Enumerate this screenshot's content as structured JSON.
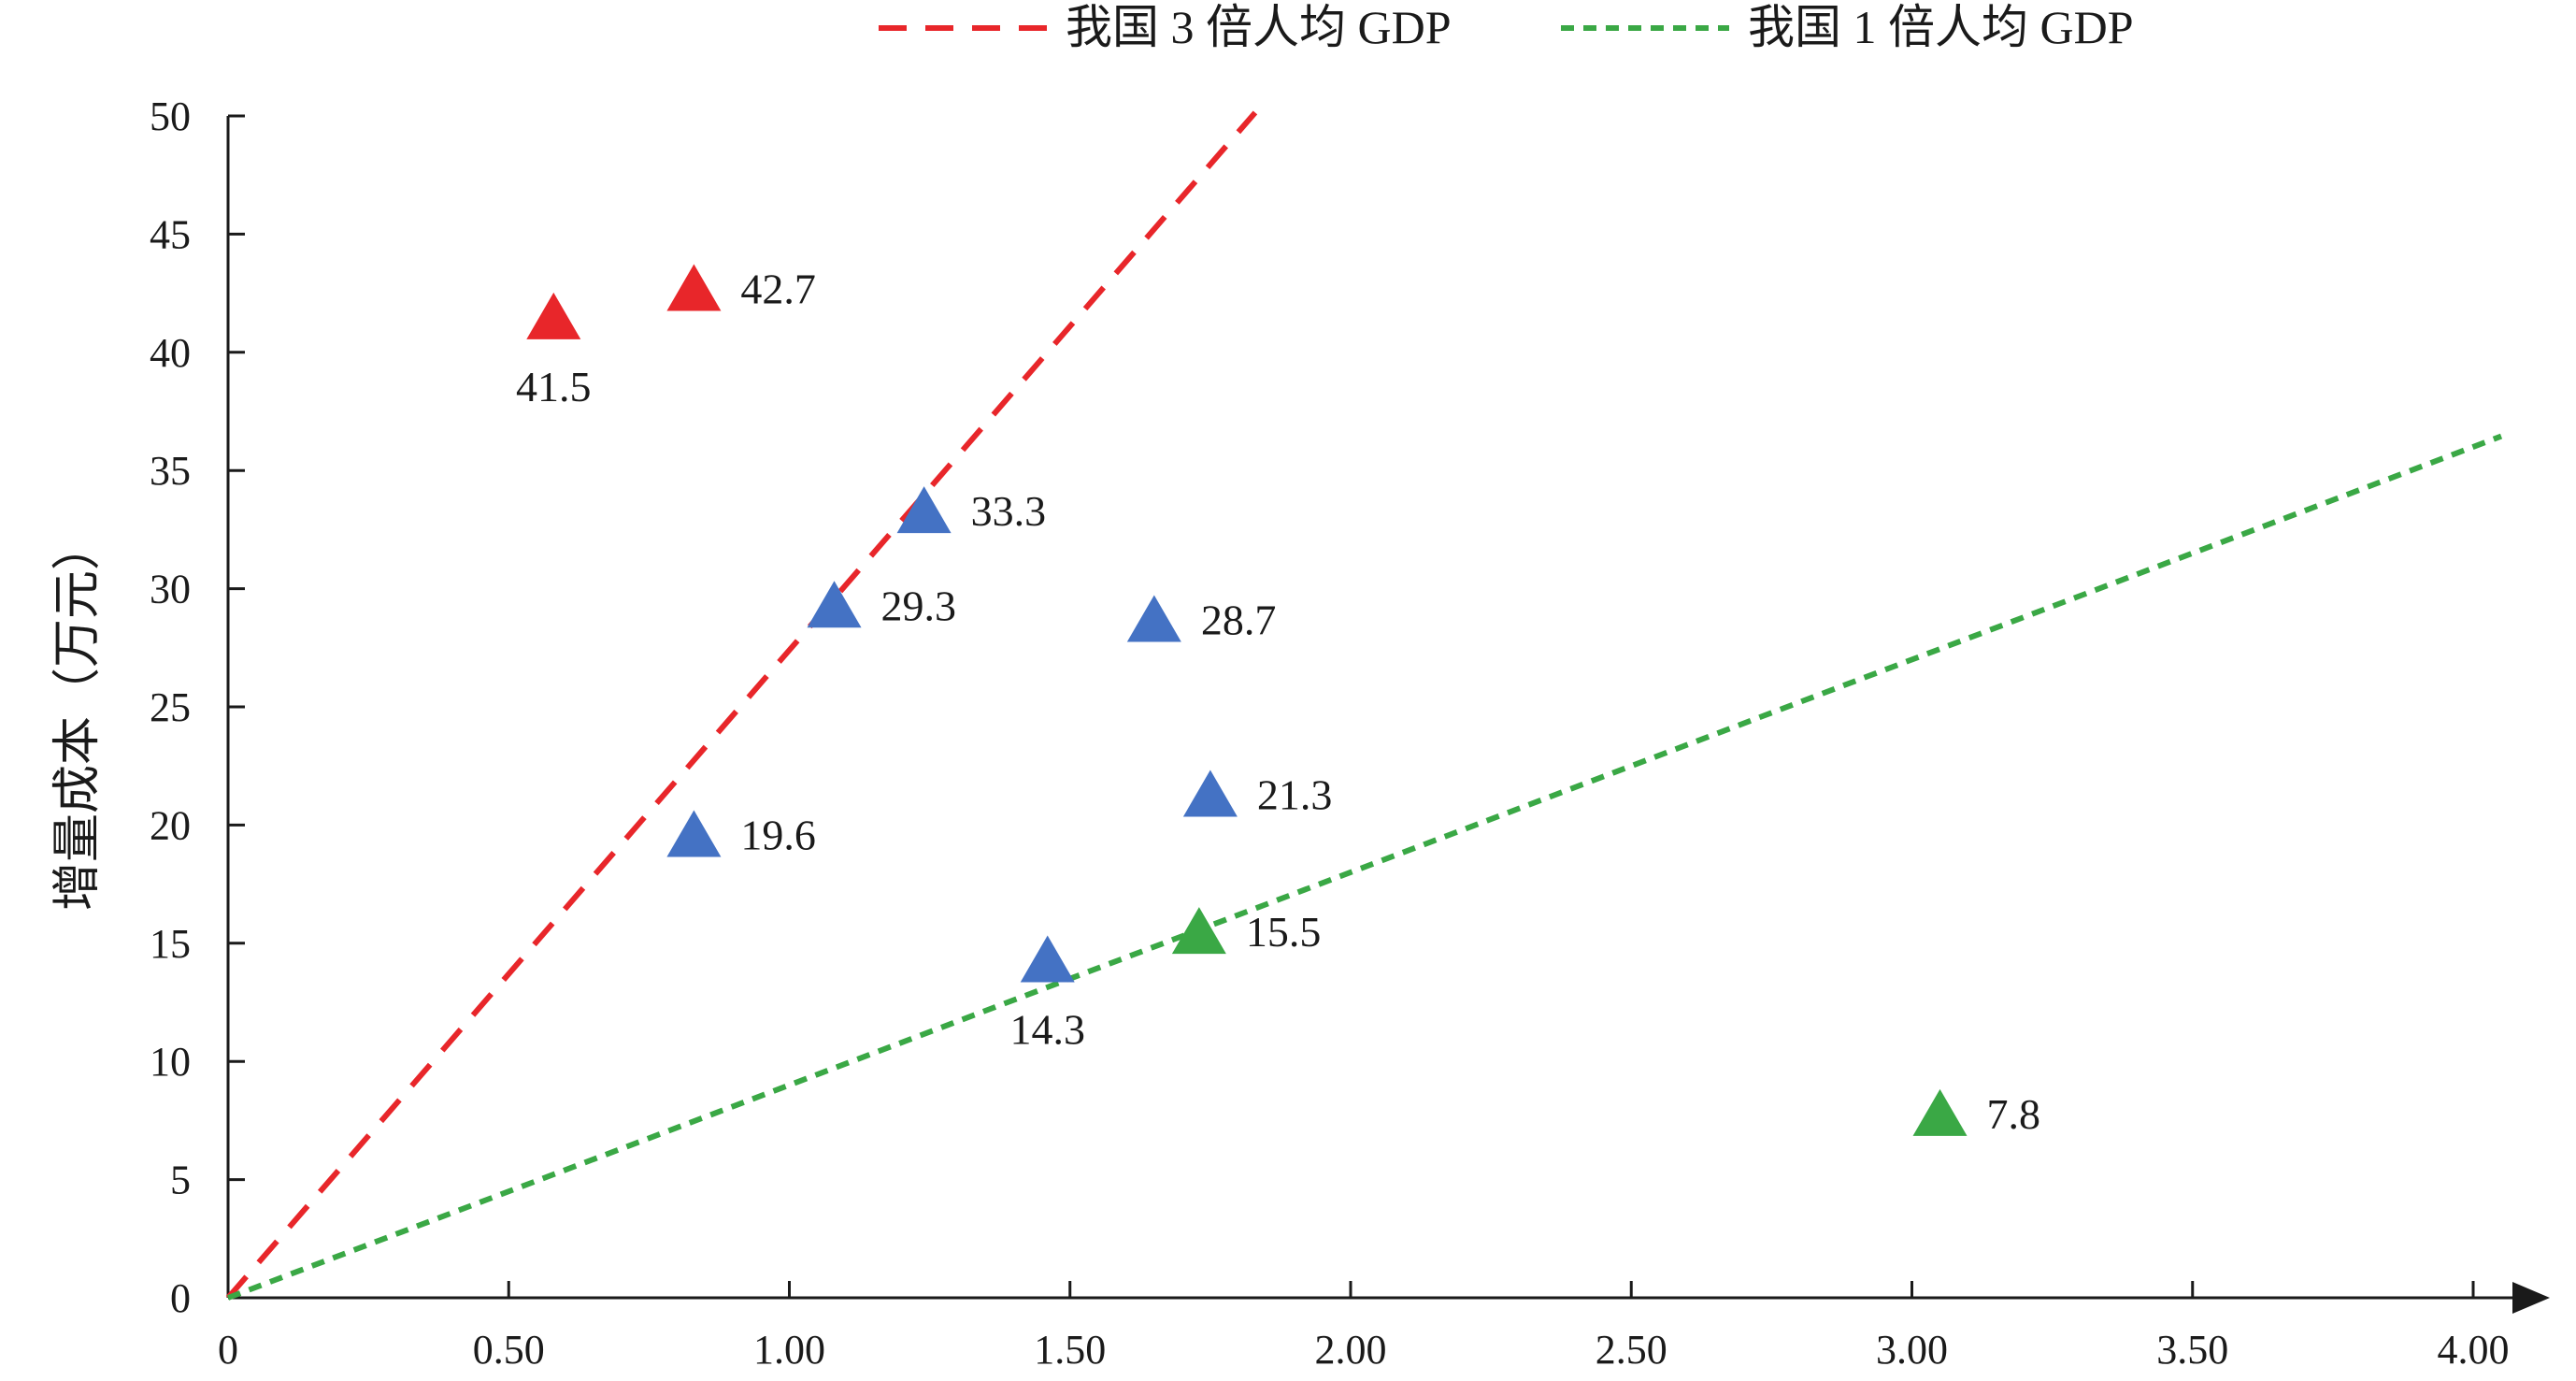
{
  "chart_data": {
    "type": "scatter",
    "title": "",
    "xlabel": "",
    "ylabel": "增量成本（万元）",
    "xlim": [
      0,
      4.0
    ],
    "ylim": [
      0,
      50
    ],
    "x_ticks": [
      0,
      0.5,
      1.0,
      1.5,
      2.0,
      2.5,
      3.0,
      3.5,
      4.0
    ],
    "x_tick_labels": [
      "0",
      "0.50",
      "1.00",
      "1.50",
      "2.00",
      "2.50",
      "3.00",
      "3.50",
      "4.00"
    ],
    "y_ticks": [
      0,
      5,
      10,
      15,
      20,
      25,
      30,
      35,
      40,
      45,
      50
    ],
    "y_tick_labels": [
      "0",
      "5",
      "10",
      "15",
      "20",
      "25",
      "30",
      "35",
      "40",
      "45",
      "50"
    ],
    "grid": false,
    "legend_position": "top",
    "marker": "triangle",
    "reference_lines": [
      {
        "name": "我国 3 倍人均 GDP",
        "color": "#e8262a",
        "dash": "long",
        "slope": 27.4,
        "x_range": [
          0,
          1.83
        ]
      },
      {
        "name": "我国 1 倍人均 GDP",
        "color": "#3aa845",
        "dash": "short",
        "slope": 9.0,
        "x_range": [
          0,
          4.05
        ]
      }
    ],
    "series": [
      {
        "color": "#e8262a",
        "points": [
          {
            "x": 0.58,
            "y": 41.5,
            "label": "41.5",
            "label_pos": "below"
          },
          {
            "x": 0.83,
            "y": 42.7,
            "label": "42.7",
            "label_pos": "right"
          }
        ]
      },
      {
        "color": "#4472c4",
        "points": [
          {
            "x": 1.24,
            "y": 33.3,
            "label": "33.3",
            "label_pos": "right"
          },
          {
            "x": 1.08,
            "y": 29.3,
            "label": "29.3",
            "label_pos": "right"
          },
          {
            "x": 1.65,
            "y": 28.7,
            "label": "28.7",
            "label_pos": "right"
          },
          {
            "x": 1.75,
            "y": 21.3,
            "label": "21.3",
            "label_pos": "right"
          },
          {
            "x": 0.83,
            "y": 19.6,
            "label": "19.6",
            "label_pos": "right"
          },
          {
            "x": 1.46,
            "y": 14.3,
            "label": "14.3",
            "label_pos": "below"
          }
        ]
      },
      {
        "color": "#3aa845",
        "points": [
          {
            "x": 1.73,
            "y": 15.5,
            "label": "15.5",
            "label_pos": "right"
          },
          {
            "x": 3.05,
            "y": 7.8,
            "label": "7.8",
            "label_pos": "right"
          }
        ]
      }
    ]
  }
}
